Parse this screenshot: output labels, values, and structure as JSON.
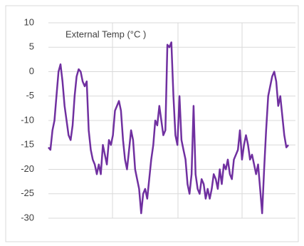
{
  "chart_data": {
    "type": "line",
    "title": "External Temp (°C )",
    "series": [
      {
        "name": "External Temp (°C )",
        "color": "#7030a0",
        "values": [
          -15.5,
          -16,
          -12,
          -10,
          -5,
          0,
          1.5,
          -2,
          -7,
          -10,
          -13,
          -14,
          -11,
          -5,
          -1,
          0.5,
          0,
          -2,
          -3,
          -2,
          -12,
          -16,
          -18,
          -19,
          -21,
          -19,
          -21,
          -15,
          -17,
          -19,
          -14,
          -15,
          -13,
          -8,
          -7,
          -6,
          -8,
          -14,
          -18,
          -20,
          -16,
          -12,
          -14,
          -20,
          -22,
          -24,
          -29,
          -25,
          -24,
          -26,
          -22,
          -18,
          -15,
          -10,
          -11,
          -7,
          -10,
          -13,
          -12,
          5.5,
          5,
          6,
          -5,
          -13,
          -15,
          -5,
          -14,
          -16,
          -18,
          -23,
          -25,
          -21,
          -7,
          -21,
          -24,
          -25,
          -22,
          -23,
          -26,
          -24,
          -26,
          -24,
          -21,
          -22,
          -24,
          -20,
          -23,
          -19,
          -20,
          -18,
          -21,
          -22,
          -18,
          -17,
          -16,
          -12,
          -18,
          -15,
          -13,
          -15,
          -18,
          -17,
          -19,
          -21,
          -19,
          -24,
          -29,
          -20,
          -12,
          -5,
          -3,
          -1,
          0,
          -2,
          -7,
          -5,
          -9,
          -13,
          -15.5,
          -15
        ]
      }
    ],
    "ylim": [
      -30,
      10
    ],
    "yticks": [
      -30,
      -25,
      -20,
      -15,
      -10,
      -5,
      0,
      5,
      10
    ],
    "grid": true
  }
}
